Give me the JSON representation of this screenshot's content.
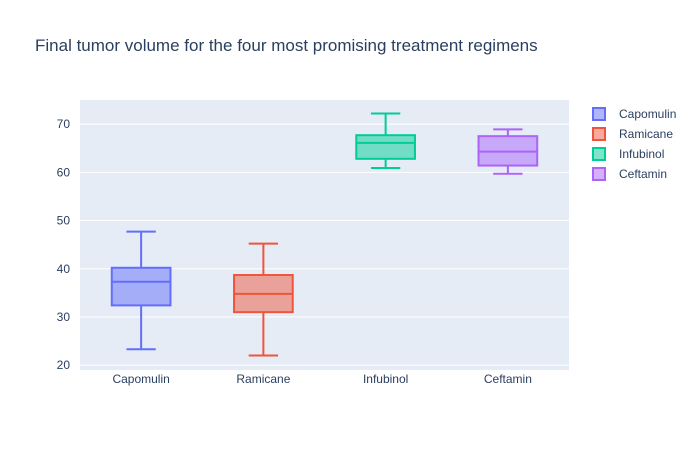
{
  "chart_data": {
    "type": "box",
    "title": "Final tumor volume for the four most promising treatment regimens",
    "xlabel": "",
    "ylabel": "",
    "ylim": [
      19,
      75
    ],
    "yticks": [
      20,
      30,
      40,
      50,
      60,
      70
    ],
    "grid": true,
    "legend_position": "right",
    "categories": [
      "Capomulin",
      "Ramicane",
      "Infubinol",
      "Ceftamin"
    ],
    "series": [
      {
        "name": "Capomulin",
        "color": "#636efa",
        "fill": "rgba(99,110,250,0.5)",
        "lower_fence": 23.3,
        "q1": 32.4,
        "median": 37.3,
        "q3": 40.2,
        "upper_fence": 47.7
      },
      {
        "name": "Ramicane",
        "color": "#ef553b",
        "fill": "rgba(239,85,59,0.5)",
        "lower_fence": 22.0,
        "q1": 31.0,
        "median": 34.8,
        "q3": 38.7,
        "upper_fence": 45.2
      },
      {
        "name": "Infubinol",
        "color": "#00cc96",
        "fill": "rgba(0,204,150,0.5)",
        "lower_fence": 60.9,
        "q1": 62.8,
        "median": 66.1,
        "q3": 67.7,
        "upper_fence": 72.2
      },
      {
        "name": "Ceftamin",
        "color": "#ab63fa",
        "fill": "rgba(171,99,250,0.5)",
        "lower_fence": 59.7,
        "q1": 61.4,
        "median": 64.3,
        "q3": 67.5,
        "upper_fence": 68.9
      }
    ]
  }
}
